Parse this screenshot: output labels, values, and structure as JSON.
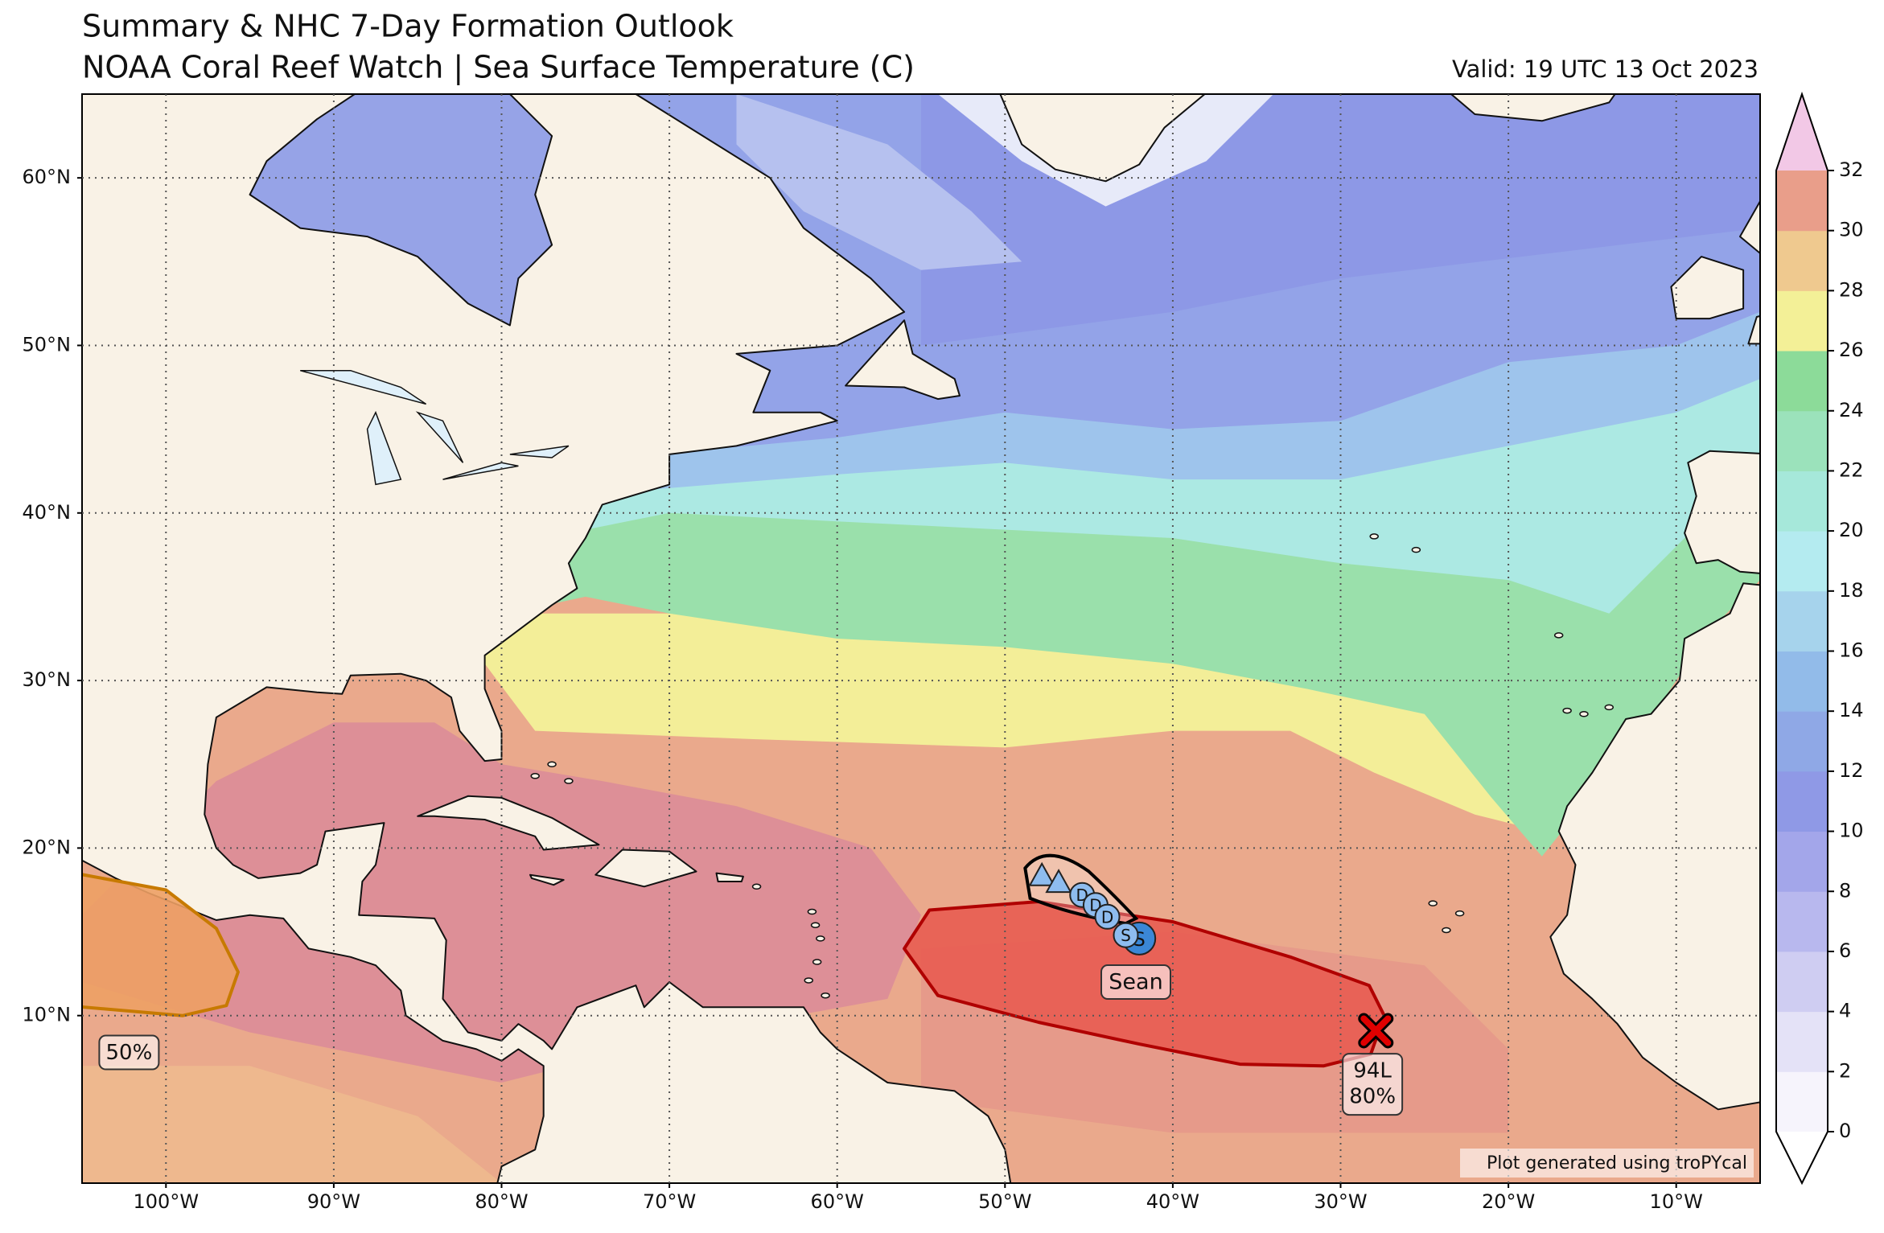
{
  "header": {
    "title": "Summary & NHC 7-Day Formation Outlook",
    "subtitle": "NOAA Coral Reef Watch | Sea Surface Temperature (C)",
    "valid": "Valid: 19 UTC 13 Oct 2023"
  },
  "map": {
    "lonlim": [
      -105,
      -5
    ],
    "latlim": [
      0,
      65
    ],
    "grid": true,
    "lat_ticks": [
      {
        "value": 10,
        "label": "10°N"
      },
      {
        "value": 20,
        "label": "20°N"
      },
      {
        "value": 30,
        "label": "30°N"
      },
      {
        "value": 40,
        "label": "40°N"
      },
      {
        "value": 50,
        "label": "50°N"
      },
      {
        "value": 60,
        "label": "60°N"
      }
    ],
    "lon_ticks": [
      {
        "value": -100,
        "label": "100°W"
      },
      {
        "value": -90,
        "label": "90°W"
      },
      {
        "value": -80,
        "label": "80°W"
      },
      {
        "value": -70,
        "label": "70°W"
      },
      {
        "value": -60,
        "label": "60°W"
      },
      {
        "value": -50,
        "label": "50°W"
      },
      {
        "value": -40,
        "label": "40°W"
      },
      {
        "value": -30,
        "label": "30°W"
      },
      {
        "value": -20,
        "label": "20°W"
      },
      {
        "value": -10,
        "label": "10°W"
      }
    ]
  },
  "colorbar": {
    "lim": [
      0,
      32
    ],
    "ticks": [
      0,
      2,
      4,
      6,
      8,
      10,
      12,
      14,
      16,
      18,
      20,
      22,
      24,
      26,
      28,
      30,
      32
    ],
    "colors": [
      "#f6f4fc",
      "#e4e2f7",
      "#cfcdf2",
      "#b8b8ee",
      "#a3a6ea",
      "#8f99e6",
      "#8fa8e6",
      "#92bbe9",
      "#a6d3ec",
      "#b4ebf0",
      "#a6e8da",
      "#9be2bb",
      "#8cdb99",
      "#f3f097",
      "#efc98f",
      "#e99e8a"
    ],
    "over_color": "#f2c8e6",
    "under_color": "#ffffff"
  },
  "storms": [
    {
      "name": "Sean",
      "name_lon": -42.2,
      "name_lat": 12.0,
      "points": [
        {
          "lon": -47.8,
          "lat": 18.3
        },
        {
          "lon": -46.8,
          "lat": 17.9
        },
        {
          "lon": -45.4,
          "lat": 17.2,
          "label": "D"
        },
        {
          "lon": -44.6,
          "lat": 16.6,
          "label": "D"
        },
        {
          "lon": -43.9,
          "lat": 15.9,
          "label": "D"
        },
        {
          "lon": -42.0,
          "lat": 14.6,
          "label": "S"
        },
        {
          "lon": -42.8,
          "lat": 14.8,
          "label": "S"
        }
      ]
    }
  ],
  "outlooks": [
    {
      "name": "94L",
      "chance": "80%",
      "lon": -28.1,
      "lat": 5.9,
      "x_lon": -27.9,
      "x_lat": 9.1,
      "color": "#e8584e"
    },
    {
      "chance": "50%",
      "lon": -102.2,
      "lat": 7.8,
      "color": "#eda064"
    }
  ],
  "credit": "Plot generated using troPYcal"
}
